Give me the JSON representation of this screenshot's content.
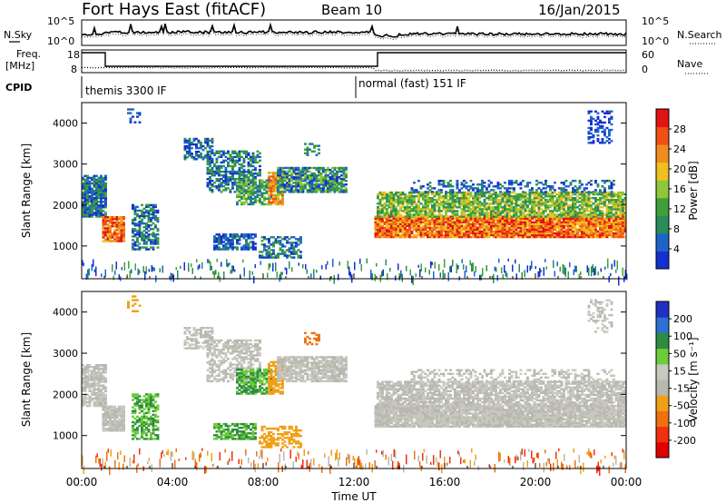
{
  "header": {
    "title": "Fort Hays East (fitACF)",
    "beam": "Beam 10",
    "date": "16/Jan/2015"
  },
  "sky_panel": {
    "left_label": "N.Sky",
    "right_label": "N.Search",
    "tick_top": "10^5",
    "tick_bottom": "10^0",
    "right_tick_top": "10^5",
    "right_tick_bottom": "10^0"
  },
  "freq_panel": {
    "left_label_1": "Freq.",
    "left_label_2": "[MHz]",
    "right_label": "Nave",
    "tick_18": "18",
    "tick_8": "8",
    "right_tick_60": "60",
    "right_tick_0": "0"
  },
  "cpid": {
    "label": "CPID",
    "modes": [
      {
        "text": "themis 3300 IF",
        "start_hour": 0
      },
      {
        "text": "normal (fast) 151 IF",
        "start_hour": 12
      }
    ]
  },
  "colors": {
    "power": [
      "#1430d0",
      "#1e64c8",
      "#2a8c5a",
      "#3fa03a",
      "#8cc838",
      "#f0c020",
      "#f08c1e",
      "#f05014",
      "#e01414"
    ],
    "velocity": [
      "#2030c0",
      "#2c70d0",
      "#2e8c40",
      "#6ccc3a",
      "#c8c8c0",
      "#b8b8b0",
      "#f0a018",
      "#f07010",
      "#f03010",
      "#e00000"
    ],
    "ground_scatter": "#c0c0b8"
  },
  "chart_data": [
    {
      "type": "heatmap",
      "name": "power",
      "ylabel": "Slant Range [km]",
      "xlabel": "",
      "ylim": [
        200,
        4500
      ],
      "y_ticks": [
        "1000",
        "2000",
        "3000",
        "4000"
      ],
      "colorbar_label": "Power [dB]",
      "colorbar_ticks": [
        "4",
        "8",
        "12",
        "16",
        "20",
        "24",
        "28"
      ],
      "colorbar_range": [
        0,
        32
      ]
    },
    {
      "type": "heatmap",
      "name": "velocity",
      "ylabel": "Slant Range [km]",
      "xlabel": "Time UT",
      "ylim": [
        200,
        4500
      ],
      "y_ticks": [
        "1000",
        "2000",
        "3000",
        "4000"
      ],
      "x_ticks": [
        "00:00",
        "04:00",
        "08:00",
        "12:00",
        "16:00",
        "20:00",
        "00:00"
      ],
      "colorbar_label": "Velocity [m s⁻¹]",
      "colorbar_ticks": [
        "200",
        "100",
        "50",
        "15",
        "-15",
        "-50",
        "-100",
        "-200"
      ]
    }
  ]
}
